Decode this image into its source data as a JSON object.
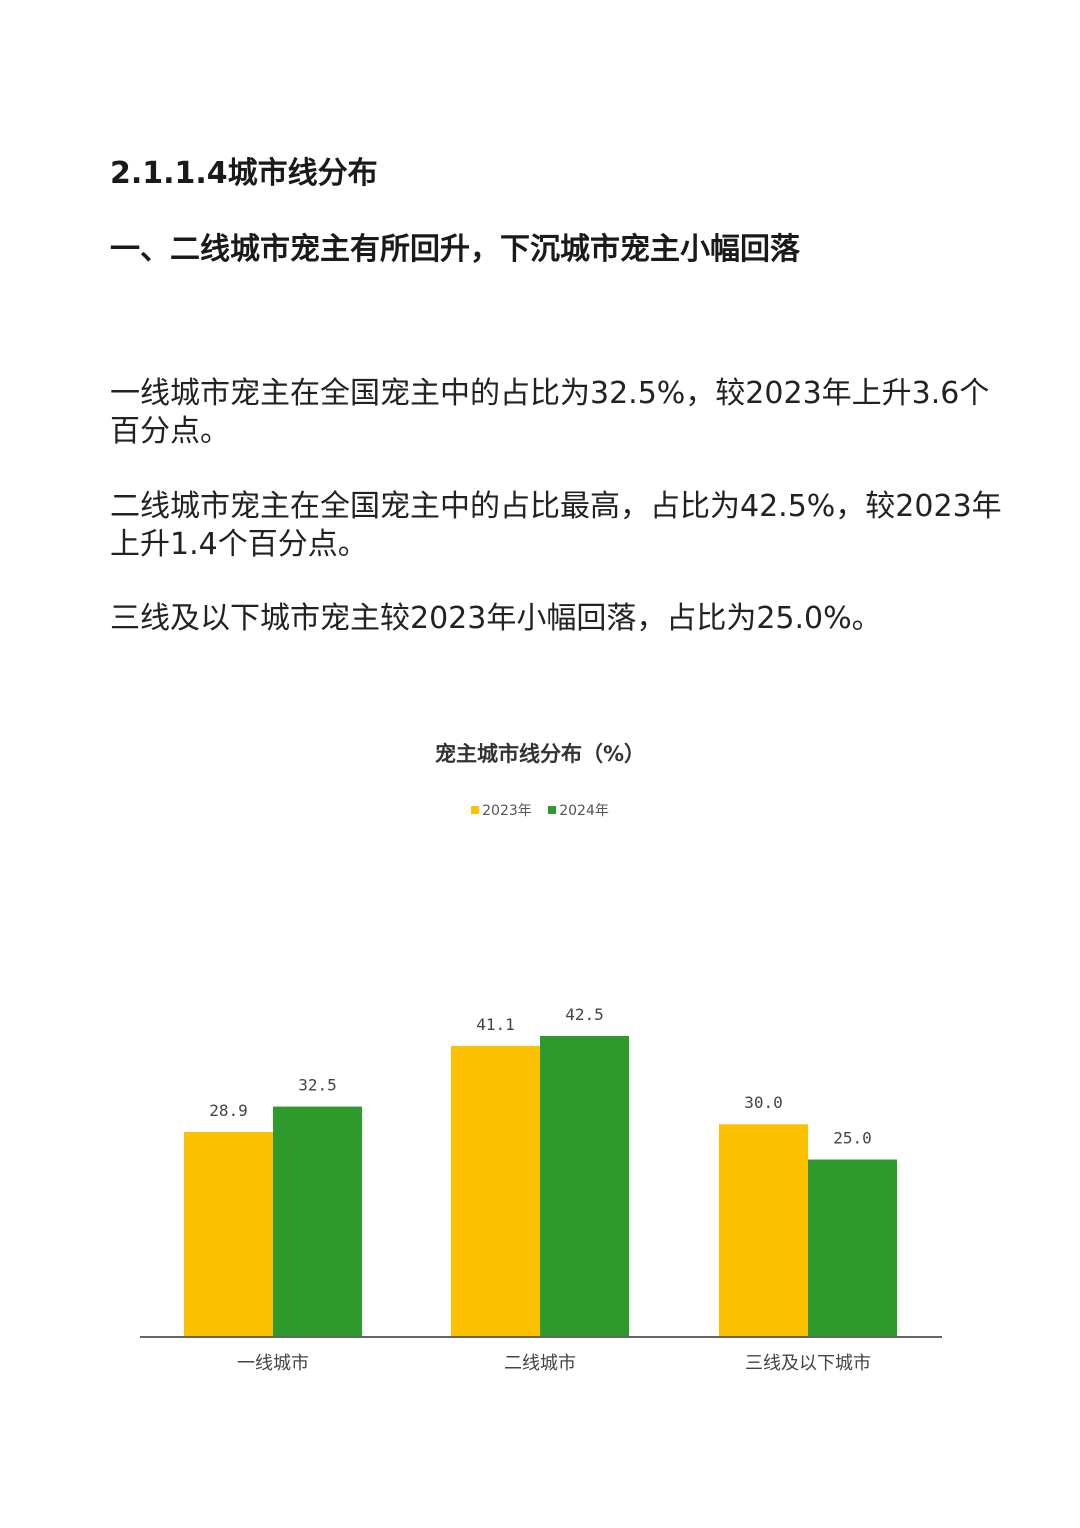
{
  "document": {
    "section_heading": "2.1.1.4城市线分布",
    "sub_heading": "一、二线城市宠主有所回升，下沉城市宠主小幅回落",
    "paragraphs": [
      "一线城市宠主在全国宠主中的占比为32.5%，较2023年上升3.6个百分点。",
      "二线城市宠主在全国宠主中的占比最高，占比为42.5%，较2023年上升1.4个百分点。",
      "三线及以下城市宠主较2023年小幅回落，占比为25.0%。"
    ]
  },
  "chart_data": {
    "type": "bar",
    "title": "宠主城市线分布（%）",
    "categories": [
      "一线城市",
      "二线城市",
      "三线及以下城市"
    ],
    "series": [
      {
        "name": "2023年",
        "color": "#FBC100",
        "values": [
          28.9,
          41.1,
          30.0
        ],
        "labels": [
          "28.9",
          "41.1",
          "30.0"
        ]
      },
      {
        "name": "2024年",
        "color": "#2E9A2B",
        "values": [
          32.5,
          42.5,
          25.0
        ],
        "labels": [
          "32.5",
          "42.5",
          "25.0"
        ]
      }
    ],
    "ylim": [
      0,
      50
    ],
    "grid": false,
    "legend": "top-center",
    "xlabel": "",
    "ylabel": ""
  }
}
